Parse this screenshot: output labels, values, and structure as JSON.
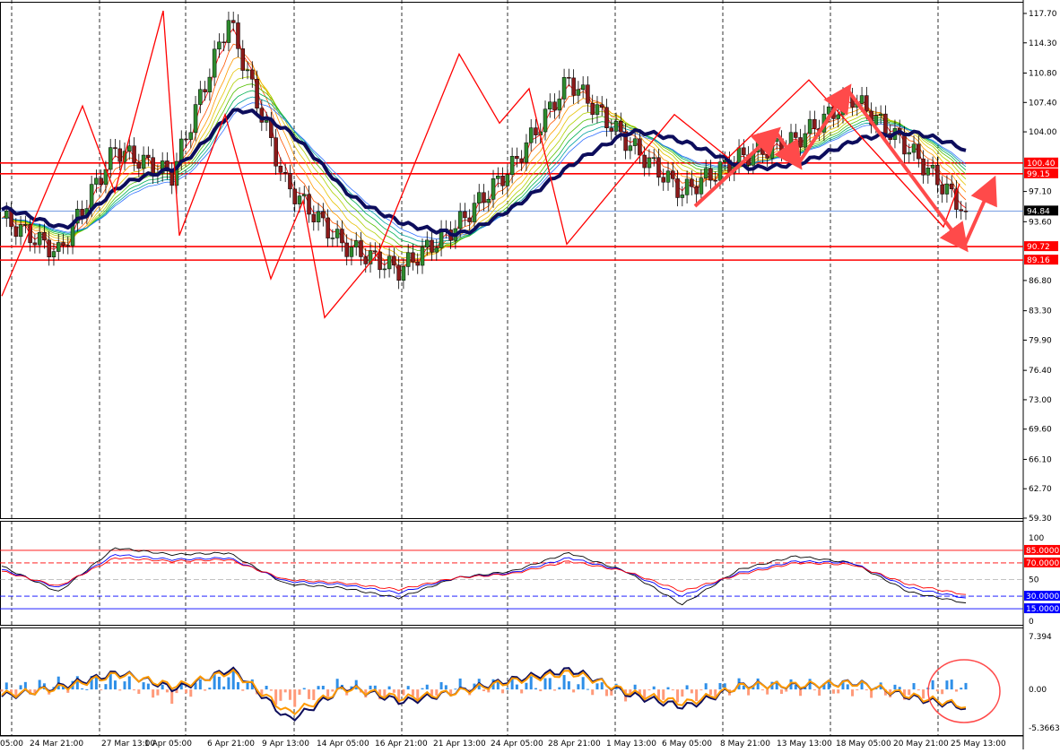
{
  "price_panel": {
    "y_ticks": [
      "117.70",
      "114.30",
      "110.80",
      "107.40",
      "104.00",
      "97.10",
      "93.60",
      "86.80",
      "83.30",
      "79.90",
      "76.40",
      "73.00",
      "69.60",
      "66.10",
      "62.70",
      "59.30"
    ],
    "y_tick_values": [
      117.7,
      114.3,
      110.8,
      107.4,
      104.0,
      97.1,
      93.6,
      86.8,
      83.3,
      79.9,
      76.4,
      73.0,
      69.6,
      66.1,
      62.7,
      59.3
    ],
    "level_labels": [
      {
        "text": "100.40",
        "value": 100.4,
        "bg": "#ff0000"
      },
      {
        "text": "99.15",
        "value": 99.15,
        "bg": "#ff0000"
      },
      {
        "text": "94.84",
        "value": 94.84,
        "bg": "#000000"
      },
      {
        "text": "90.72",
        "value": 90.72,
        "bg": "#ff0000"
      },
      {
        "text": "89.16",
        "value": 89.16,
        "bg": "#ff0000"
      }
    ]
  },
  "rsi_panel": {
    "y_ticks": [
      "100",
      "50",
      "0"
    ],
    "y_tick_values": [
      100,
      50,
      0
    ],
    "level_labels": [
      {
        "text": "85.0000",
        "value": 85,
        "bg": "#ff0000"
      },
      {
        "text": "70.0000",
        "value": 70,
        "bg": "#ff0000"
      },
      {
        "text": "30.0000",
        "value": 30,
        "bg": "#0000ff"
      },
      {
        "text": "15.0000",
        "value": 15,
        "bg": "#0000ff"
      }
    ]
  },
  "macd_panel": {
    "y_ticks": [
      "7.394",
      "0.00",
      "-5.3663"
    ],
    "y_tick_values": [
      7.394,
      0,
      -5.3663
    ]
  },
  "x_labels": [
    "05:00",
    "24 Mar 21:00",
    "27 Mar 13:00",
    "1 Apr 05:00",
    "6 Apr 21:00",
    "9 Apr 13:00",
    "14 Apr 05:00",
    "16 Apr 21:00",
    "21 Apr 13:00",
    "24 Apr 05:00",
    "28 Apr 21:00",
    "1 May 13:00",
    "6 May 05:00",
    "8 May 21:00",
    "13 May 13:00",
    "18 May 05:00",
    "20 May 21:00",
    "25 May 13:00"
  ],
  "chart_data": [
    {
      "type": "line",
      "panel": "price",
      "ylim": [
        59.3,
        117.7
      ],
      "x": [
        "05:00",
        "24 Mar 21:00",
        "27 Mar 13:00",
        "1 Apr 05:00",
        "6 Apr 21:00",
        "9 Apr 13:00",
        "14 Apr 05:00",
        "16 Apr 21:00",
        "21 Apr 13:00",
        "24 Apr 05:00",
        "28 Apr 21:00",
        "1 May 13:00",
        "6 May 05:00",
        "8 May 21:00",
        "13 May 13:00",
        "18 May 05:00",
        "20 May 21:00",
        "25 May 13:00"
      ],
      "series": [
        {
          "values": [
            94.0,
            90.0,
            102.0,
            99.0,
            117.0,
            98.0,
            91.0,
            88.0,
            93.0,
            100.0,
            110.0,
            103.0,
            97.0,
            101.0,
            103.0,
            108.0,
            102.0,
            94.8
          ],
          "color": "#000000"
        },
        {
          "values": [
            95.0,
            92.5,
            98.5,
            100.0,
            107.5,
            103.5,
            96.0,
            93.0,
            92.0,
            96.0,
            101.0,
            104.5,
            102.5,
            99.5,
            100.5,
            103.5,
            104.0,
            101.5
          ],
          "color": "#0d0d5c"
        }
      ],
      "horizontal_levels": [
        100.4,
        99.15,
        94.84,
        90.72,
        89.16
      ],
      "zigzag": [
        [
          0,
          85
        ],
        [
          3,
          107
        ],
        [
          4.2,
          97
        ],
        [
          6,
          118
        ],
        [
          6.6,
          92
        ],
        [
          8.3,
          106
        ],
        [
          10,
          87
        ],
        [
          11.2,
          96
        ],
        [
          12,
          82.5
        ],
        [
          14,
          90
        ],
        [
          17,
          113
        ],
        [
          18.5,
          105
        ],
        [
          19.6,
          109
        ],
        [
          21,
          91
        ],
        [
          25,
          106
        ],
        [
          27,
          101
        ],
        [
          30,
          110
        ],
        [
          35,
          93
        ],
        [
          35.6,
          98
        ]
      ]
    },
    {
      "type": "line",
      "panel": "rsi",
      "ylim": [
        0,
        100
      ],
      "x": [
        "05:00",
        "24 Mar 21:00",
        "27 Mar 13:00",
        "1 Apr 05:00",
        "6 Apr 21:00",
        "9 Apr 13:00",
        "14 Apr 05:00",
        "16 Apr 21:00",
        "21 Apr 13:00",
        "24 Apr 05:00",
        "28 Apr 21:00",
        "1 May 13:00",
        "6 May 05:00",
        "8 May 21:00",
        "13 May 13:00",
        "18 May 05:00",
        "20 May 21:00",
        "25 May 13:00"
      ],
      "series": [
        {
          "values": [
            66,
            35,
            88,
            80,
            82,
            45,
            40,
            28,
            52,
            60,
            82,
            60,
            20,
            62,
            78,
            70,
            35,
            22
          ],
          "color": "#000000"
        },
        {
          "values": [
            62,
            40,
            80,
            74,
            76,
            48,
            44,
            34,
            52,
            58,
            76,
            60,
            30,
            58,
            72,
            70,
            40,
            28
          ],
          "color": "#0000ff"
        },
        {
          "values": [
            60,
            42,
            76,
            72,
            74,
            50,
            46,
            38,
            52,
            57,
            72,
            60,
            36,
            56,
            70,
            68,
            44,
            32
          ],
          "color": "#ff0000"
        }
      ],
      "horizontal_levels": [
        85,
        70,
        50,
        30,
        15
      ]
    },
    {
      "type": "bar",
      "panel": "macd",
      "ylim": [
        -5.3663,
        7.394
      ],
      "x": [
        "05:00",
        "24 Mar 21:00",
        "27 Mar 13:00",
        "1 Apr 05:00",
        "6 Apr 21:00",
        "9 Apr 13:00",
        "14 Apr 05:00",
        "16 Apr 21:00",
        "21 Apr 13:00",
        "24 Apr 05:00",
        "28 Apr 21:00",
        "1 May 13:00",
        "6 May 05:00",
        "8 May 21:00",
        "13 May 13:00",
        "18 May 05:00",
        "20 May 21:00",
        "25 May 13:00"
      ],
      "series": [
        {
          "values": [
            -0.3,
            0.6,
            1.2,
            -0.8,
            1.8,
            -1.6,
            0.5,
            -0.9,
            0.3,
            0.6,
            0.9,
            -0.5,
            -0.7,
            0.4,
            0.3,
            0.2,
            -0.4,
            0.9
          ],
          "color": "#2f8fe8"
        },
        {
          "values": [
            -1.0,
            0.5,
            2.4,
            0.0,
            3.0,
            -4.5,
            0.5,
            -1.8,
            -0.2,
            1.5,
            2.8,
            -0.8,
            -2.5,
            0.7,
            0.5,
            1.0,
            -1.2,
            -2.6
          ],
          "color": "#0d0d5c"
        },
        {
          "values": [
            -0.8,
            0.3,
            2.2,
            0.4,
            2.6,
            -3.5,
            0.3,
            -1.3,
            -0.3,
            1.3,
            2.4,
            -0.5,
            -2.0,
            0.6,
            0.6,
            0.9,
            -1.0,
            -2.4
          ],
          "color": "#ff9900"
        }
      ]
    }
  ]
}
